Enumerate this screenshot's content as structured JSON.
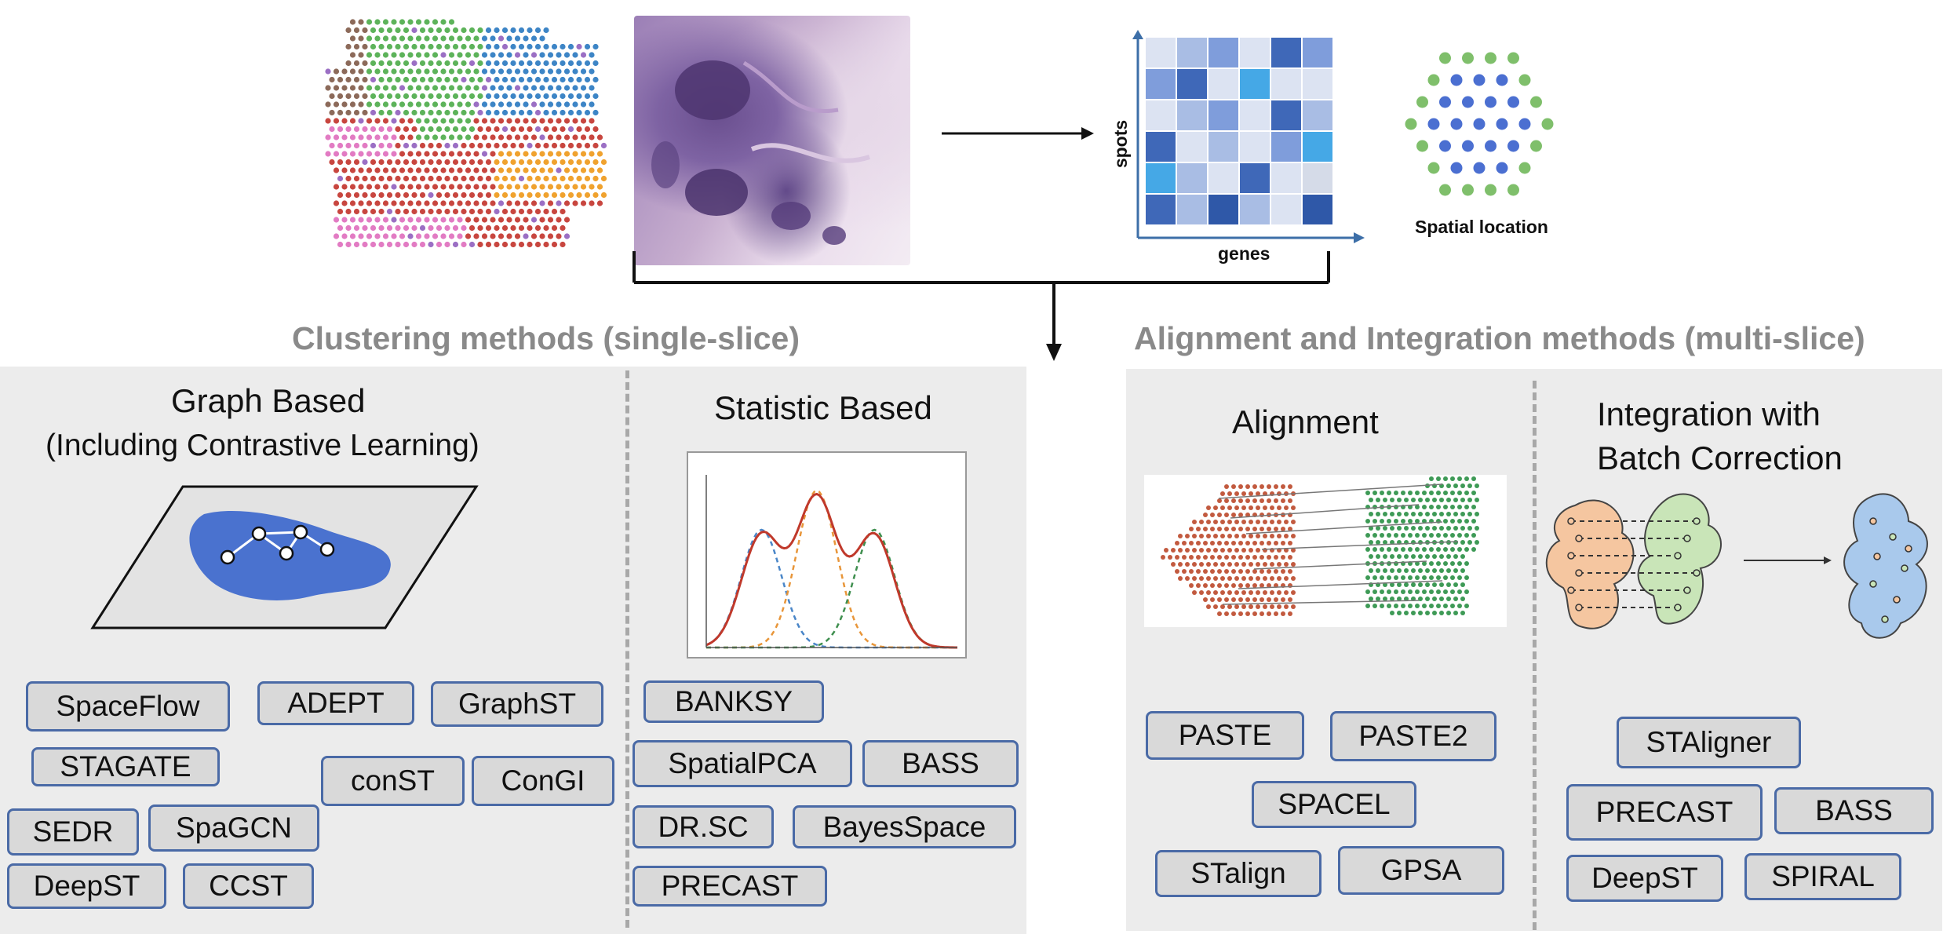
{
  "top": {
    "matrix_y_label": "spots",
    "matrix_x_label": "genes",
    "spatial_label": "Spatial location"
  },
  "clustering": {
    "title": "Clustering methods (single-slice)",
    "graph": {
      "title": "Graph Based",
      "subtitle": "(Including Contrastive Learning)",
      "methods": [
        "SpaceFlow",
        "ADEPT",
        "GraphST",
        "STAGATE",
        "conST",
        "ConGI",
        "SEDR",
        "SpaGCN",
        "DeepST",
        "CCST"
      ]
    },
    "statistic": {
      "title": "Statistic Based",
      "methods": [
        "BANKSY",
        "SpatialPCA",
        "BASS",
        "DR.SC",
        "BayesSpace",
        "PRECAST"
      ]
    }
  },
  "alignment": {
    "title": "Alignment and Integration methods (multi-slice)",
    "align": {
      "title": "Alignment",
      "methods": [
        "PASTE",
        "PASTE2",
        "SPACEL",
        "STalign",
        "GPSA"
      ]
    },
    "integration": {
      "title_line1": "Integration with",
      "title_line2": "Batch Correction",
      "methods": [
        "STAligner",
        "PRECAST",
        "BASS",
        "DeepST",
        "SPIRAL"
      ]
    }
  },
  "colors": {
    "panel": "#ececec",
    "chip_border": "#4a6aa6",
    "chip_fill": "#d9d9d9",
    "section_title": "#8a8a8a",
    "spot_blue": "#4b6fd1",
    "spot_green": "#7fbf6b",
    "tissue_blue": "#4a72cf"
  }
}
